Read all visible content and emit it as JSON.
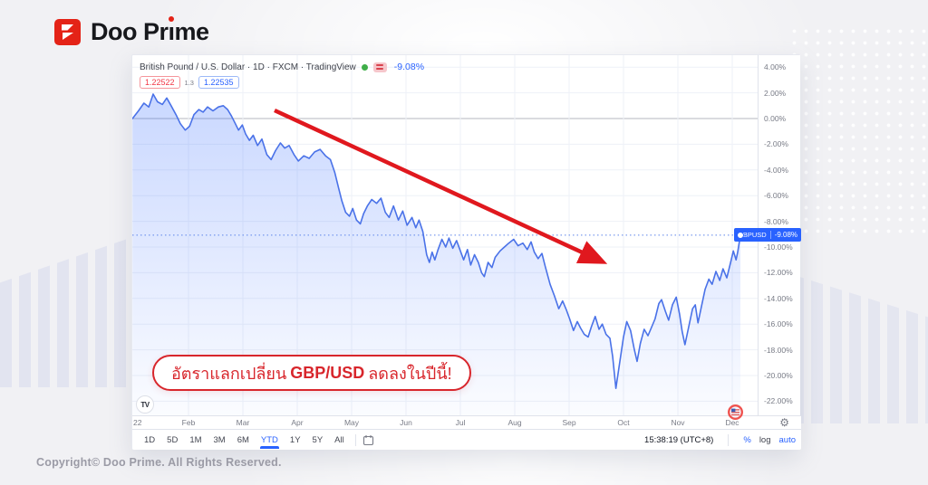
{
  "brand": {
    "logo_part_a": "Doo Pr",
    "logo_part_i": "ı",
    "logo_part_b": "me",
    "brand_red": "#e42317"
  },
  "chart": {
    "header": {
      "title": "British Pound / U.S. Dollar · 1D · FXCM · TradingView",
      "change_pct": "-9.08%",
      "sell_price": "1.22522",
      "spread": "1.3",
      "buy_price": "1.22535"
    },
    "axis_badge": {
      "symbol": "GBPUSD",
      "value": "-9.08%"
    },
    "toolbar": {
      "ranges": [
        "1D",
        "5D",
        "1M",
        "3M",
        "6M",
        "YTD",
        "1Y",
        "5Y",
        "All"
      ],
      "active_range": "YTD",
      "time": "15:38:19 (UTC+8)",
      "percent_label": "%",
      "log_label": "log",
      "auto_label": "auto"
    },
    "tv_logo_label": "TV",
    "gear_icon": "⚙",
    "accent_blue": "#2962ff"
  },
  "annotation": {
    "text_pre": "อัตราแลกเปลี่ยน",
    "text_bold": "GBP/USD",
    "text_post": "ลดลงในปีนี้!",
    "arrow_color": "#e0181e",
    "pill_red": "#d8262c"
  },
  "footer": {
    "copyright": "Copyright© Doo Prime. All Rights Reserved."
  },
  "chart_data": {
    "type": "area",
    "title": "British Pound / U.S. Dollar · 1D · FXCM · TradingView",
    "unit": "YTD percent change",
    "x_tick_labels": [
      "22",
      "Feb",
      "Mar",
      "Apr",
      "May",
      "Jun",
      "Jul",
      "Aug",
      "Sep",
      "Oct",
      "Nov",
      "Dec"
    ],
    "y_tick_labels": [
      "4.00%",
      "2.00%",
      "0.00%",
      "-2.00%",
      "-4.00%",
      "-6.00%",
      "-8.00%",
      "-10.00%",
      "-12.00%",
      "-14.00%",
      "-16.00%",
      "-18.00%",
      "-20.00%",
      "-22.00%"
    ],
    "y_tick_values": [
      4,
      2,
      0,
      -2,
      -4,
      -6,
      -8,
      -10,
      -12,
      -14,
      -16,
      -18,
      -20,
      -22
    ],
    "ylim": [
      -23.4,
      4.9
    ],
    "baseline_value": 0,
    "current_value": -9.08,
    "grid": true,
    "legend_position": "top-left-overlay",
    "series": [
      {
        "name": "GBPUSD",
        "color": "#4a72e8",
        "fill_top": "rgba(41,98,255,0.25)",
        "fill_bottom": "rgba(41,98,255,0.02)",
        "points": [
          [
            -0.03,
            0
          ],
          [
            0.08,
            0.6
          ],
          [
            0.18,
            1.2
          ],
          [
            0.27,
            0.9
          ],
          [
            0.35,
            1.9
          ],
          [
            0.43,
            1.3
          ],
          [
            0.52,
            1.1
          ],
          [
            0.6,
            1.6
          ],
          [
            0.68,
            1.0
          ],
          [
            0.77,
            0.3
          ],
          [
            0.85,
            -0.4
          ],
          [
            0.94,
            -0.9
          ],
          [
            1.02,
            -0.6
          ],
          [
            1.1,
            0.3
          ],
          [
            1.19,
            0.7
          ],
          [
            1.27,
            0.5
          ],
          [
            1.35,
            0.9
          ],
          [
            1.45,
            0.6
          ],
          [
            1.55,
            0.9
          ],
          [
            1.64,
            1.0
          ],
          [
            1.72,
            0.7
          ],
          [
            1.79,
            0.2
          ],
          [
            1.85,
            -0.3
          ],
          [
            1.92,
            -0.9
          ],
          [
            1.99,
            -0.5
          ],
          [
            2.05,
            -1.2
          ],
          [
            2.12,
            -1.7
          ],
          [
            2.19,
            -1.3
          ],
          [
            2.27,
            -2.1
          ],
          [
            2.35,
            -1.6
          ],
          [
            2.44,
            -2.8
          ],
          [
            2.52,
            -3.2
          ],
          [
            2.6,
            -2.5
          ],
          [
            2.69,
            -1.9
          ],
          [
            2.77,
            -2.3
          ],
          [
            2.85,
            -2.1
          ],
          [
            2.94,
            -2.8
          ],
          [
            3.02,
            -3.3
          ],
          [
            3.12,
            -2.9
          ],
          [
            3.22,
            -3.1
          ],
          [
            3.32,
            -2.6
          ],
          [
            3.42,
            -2.4
          ],
          [
            3.52,
            -2.9
          ],
          [
            3.61,
            -3.2
          ],
          [
            3.69,
            -4.2
          ],
          [
            3.76,
            -5.4
          ],
          [
            3.82,
            -6.4
          ],
          [
            3.89,
            -7.3
          ],
          [
            3.96,
            -7.6
          ],
          [
            4.02,
            -7.0
          ],
          [
            4.09,
            -7.9
          ],
          [
            4.16,
            -8.2
          ],
          [
            4.22,
            -7.4
          ],
          [
            4.29,
            -6.8
          ],
          [
            4.37,
            -6.3
          ],
          [
            4.46,
            -6.6
          ],
          [
            4.54,
            -6.2
          ],
          [
            4.62,
            -7.3
          ],
          [
            4.69,
            -7.7
          ],
          [
            4.77,
            -6.8
          ],
          [
            4.86,
            -7.9
          ],
          [
            4.94,
            -7.2
          ],
          [
            5.02,
            -8.3
          ],
          [
            5.11,
            -7.7
          ],
          [
            5.18,
            -8.5
          ],
          [
            5.24,
            -7.9
          ],
          [
            5.31,
            -8.8
          ],
          [
            5.38,
            -10.6
          ],
          [
            5.43,
            -11.2
          ],
          [
            5.48,
            -10.4
          ],
          [
            5.53,
            -11.0
          ],
          [
            5.59,
            -10.2
          ],
          [
            5.66,
            -9.4
          ],
          [
            5.73,
            -10.0
          ],
          [
            5.79,
            -9.3
          ],
          [
            5.86,
            -10.1
          ],
          [
            5.93,
            -9.5
          ],
          [
            6.0,
            -10.3
          ],
          [
            6.06,
            -11.0
          ],
          [
            6.13,
            -10.2
          ],
          [
            6.19,
            -11.4
          ],
          [
            6.26,
            -10.6
          ],
          [
            6.33,
            -11.2
          ],
          [
            6.39,
            -12.0
          ],
          [
            6.44,
            -12.3
          ],
          [
            6.51,
            -11.2
          ],
          [
            6.58,
            -11.6
          ],
          [
            6.64,
            -10.8
          ],
          [
            6.73,
            -10.3
          ],
          [
            6.81,
            -10.0
          ],
          [
            6.89,
            -9.7
          ],
          [
            6.98,
            -9.4
          ],
          [
            7.06,
            -9.9
          ],
          [
            7.15,
            -9.7
          ],
          [
            7.23,
            -10.2
          ],
          [
            7.3,
            -9.6
          ],
          [
            7.36,
            -10.4
          ],
          [
            7.43,
            -10.9
          ],
          [
            7.5,
            -10.5
          ],
          [
            7.56,
            -11.5
          ],
          [
            7.65,
            -12.9
          ],
          [
            7.73,
            -13.8
          ],
          [
            7.81,
            -14.8
          ],
          [
            7.88,
            -14.2
          ],
          [
            7.95,
            -14.9
          ],
          [
            8.01,
            -15.6
          ],
          [
            8.08,
            -16.5
          ],
          [
            8.15,
            -15.8
          ],
          [
            8.21,
            -16.3
          ],
          [
            8.28,
            -16.8
          ],
          [
            8.35,
            -17.0
          ],
          [
            8.41,
            -16.2
          ],
          [
            8.48,
            -15.4
          ],
          [
            8.55,
            -16.4
          ],
          [
            8.61,
            -16.0
          ],
          [
            8.68,
            -16.8
          ],
          [
            8.75,
            -17.1
          ],
          [
            8.8,
            -18.5
          ],
          [
            8.86,
            -21.0
          ],
          [
            8.93,
            -19.0
          ],
          [
            9.0,
            -17.0
          ],
          [
            9.06,
            -15.8
          ],
          [
            9.13,
            -16.5
          ],
          [
            9.2,
            -18.0
          ],
          [
            9.25,
            -18.9
          ],
          [
            9.31,
            -17.5
          ],
          [
            9.38,
            -16.4
          ],
          [
            9.45,
            -16.9
          ],
          [
            9.51,
            -16.3
          ],
          [
            9.58,
            -15.6
          ],
          [
            9.65,
            -14.4
          ],
          [
            9.7,
            -14.1
          ],
          [
            9.77,
            -15.0
          ],
          [
            9.83,
            -15.7
          ],
          [
            9.9,
            -14.5
          ],
          [
            9.97,
            -13.9
          ],
          [
            10.03,
            -15.2
          ],
          [
            10.08,
            -16.6
          ],
          [
            10.13,
            -17.6
          ],
          [
            10.2,
            -16.2
          ],
          [
            10.27,
            -14.8
          ],
          [
            10.32,
            -14.5
          ],
          [
            10.37,
            -15.9
          ],
          [
            10.43,
            -14.7
          ],
          [
            10.5,
            -13.3
          ],
          [
            10.57,
            -12.5
          ],
          [
            10.63,
            -12.9
          ],
          [
            10.7,
            -11.9
          ],
          [
            10.77,
            -12.6
          ],
          [
            10.83,
            -11.7
          ],
          [
            10.9,
            -12.4
          ],
          [
            10.97,
            -11.2
          ],
          [
            11.02,
            -10.3
          ],
          [
            11.07,
            -11.0
          ],
          [
            11.1,
            -10.4
          ],
          [
            11.15,
            -9.08
          ]
        ]
      }
    ]
  }
}
